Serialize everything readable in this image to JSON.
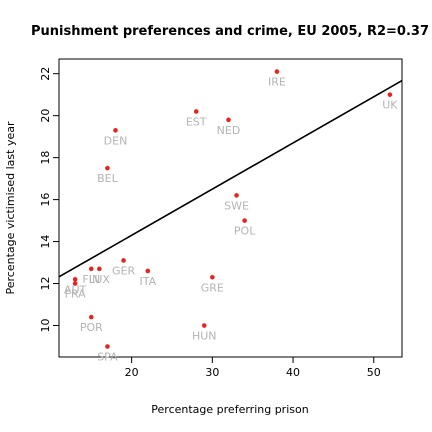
{
  "chart_data": {
    "type": "scatter",
    "title": "Punishment preferences and crime, EU 2005, R2=0.37",
    "xlabel": "Percentage preferring prison",
    "ylabel": "Percentage victimised last year",
    "xlim": [
      11,
      53.5
    ],
    "ylim": [
      8.5,
      22.7
    ],
    "xticks": [
      20,
      30,
      40,
      50
    ],
    "yticks": [
      10,
      12,
      14,
      16,
      18,
      20,
      22
    ],
    "grid": false,
    "legend": "none",
    "point_color": "#e8231f",
    "label_color": "#b4b4b4",
    "line_color": "#000000",
    "points": [
      {
        "label": "IRE",
        "x": 38,
        "y": 22.1
      },
      {
        "label": "UK",
        "x": 52,
        "y": 21.0
      },
      {
        "label": "EST",
        "x": 28,
        "y": 20.2
      },
      {
        "label": "NED",
        "x": 32,
        "y": 19.8
      },
      {
        "label": "DEN",
        "x": 18,
        "y": 19.3
      },
      {
        "label": "BEL",
        "x": 17,
        "y": 17.5
      },
      {
        "label": "SWE",
        "x": 33,
        "y": 16.2
      },
      {
        "label": "POL",
        "x": 34,
        "y": 15.0
      },
      {
        "label": "GER",
        "x": 19,
        "y": 13.1
      },
      {
        "label": "ITA",
        "x": 22,
        "y": 12.6
      },
      {
        "label": "GRE",
        "x": 30,
        "y": 12.3
      },
      {
        "label": "LUX",
        "x": 16,
        "y": 12.7
      },
      {
        "label": "FIN",
        "x": 15,
        "y": 12.7
      },
      {
        "label": "AUT",
        "x": 13,
        "y": 12.2
      },
      {
        "label": "FRA",
        "x": 13,
        "y": 12.0
      },
      {
        "label": "POR",
        "x": 15,
        "y": 10.4
      },
      {
        "label": "HUN",
        "x": 29,
        "y": 10.0
      },
      {
        "label": "SPA",
        "x": 17,
        "y": 9.0
      }
    ],
    "fit_line": {
      "intercept": 9.9,
      "slope": 0.22
    }
  }
}
